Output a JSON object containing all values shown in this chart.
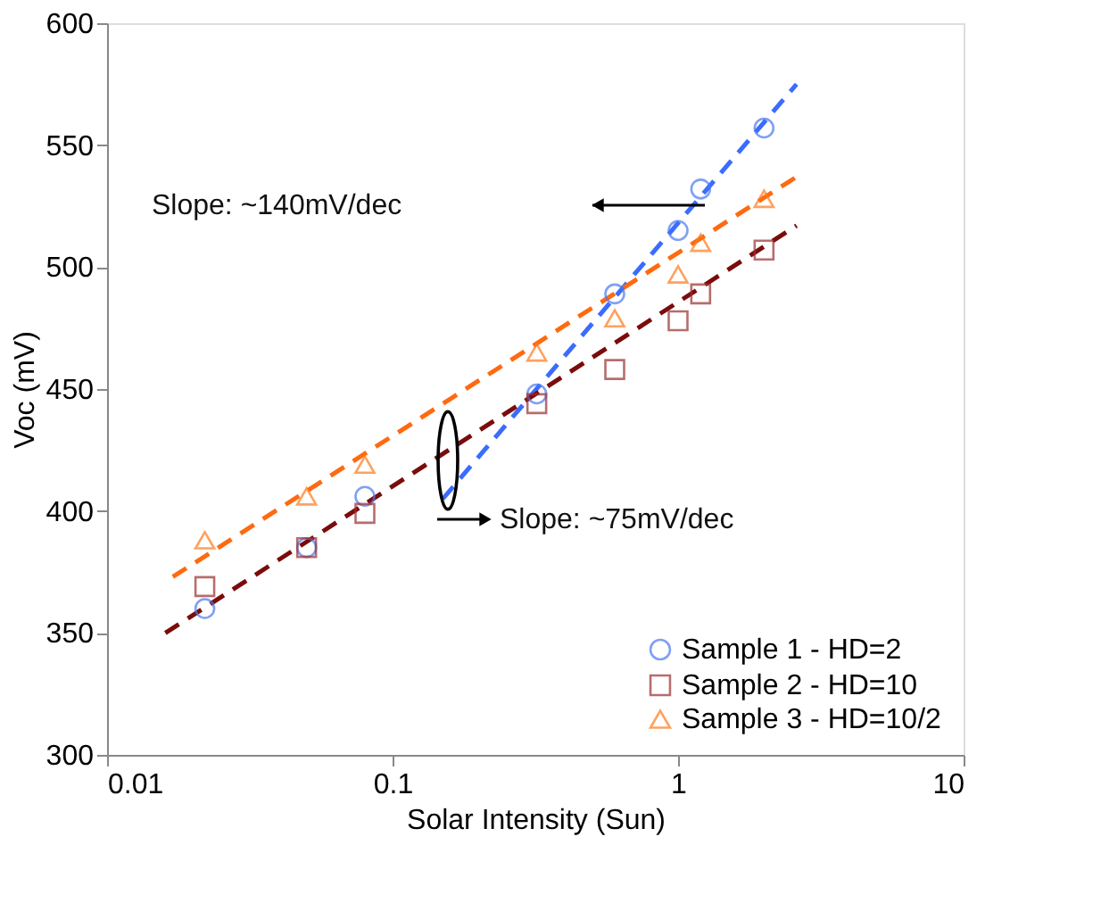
{
  "chart_data": {
    "type": "scatter",
    "xlabel": "Solar Intensity (Sun)",
    "ylabel": "Voc (mV)",
    "log": "x",
    "xlim": [
      0.01,
      10
    ],
    "xticks": [
      0.01,
      0.1,
      1,
      10
    ],
    "ylim": [
      300,
      600
    ],
    "yticks": [
      300,
      350,
      400,
      450,
      500,
      550,
      600
    ],
    "grid": false,
    "legend": "bottom right",
    "series": [
      {
        "name": "Sample 1 - HD=2",
        "color": "#4a78f0",
        "marker": "circle",
        "x": [
          0.022,
          0.05,
          0.08,
          0.32,
          0.6,
          1.0,
          1.2,
          2.0
        ],
        "values": [
          360,
          385,
          406,
          448,
          489,
          515,
          532,
          557
        ]
      },
      {
        "name": "Sample 2 - HD=10",
        "color": "#9a3030",
        "marker": "square",
        "x": [
          0.022,
          0.05,
          0.08,
          0.32,
          0.6,
          1.0,
          1.2,
          2.0
        ],
        "values": [
          369,
          385,
          399,
          444,
          458,
          478,
          489,
          507
        ]
      },
      {
        "name": "Sample 3 - HD=10/2",
        "color": "#ff7a1a",
        "marker": "triangle",
        "x": [
          0.022,
          0.05,
          0.08,
          0.32,
          0.6,
          1.0,
          1.2,
          2.0
        ],
        "values": [
          388,
          406,
          419,
          465,
          479,
          497,
          510,
          528
        ]
      },
      {
        "type": "line",
        "color": "#3b6cff",
        "line_style": "dashed",
        "x": [
          0.15,
          2.6
        ],
        "values": [
          405,
          575
        ]
      },
      {
        "type": "line",
        "color": "#7b0c0c",
        "line_style": "dashed",
        "x": [
          0.016,
          2.6
        ],
        "values": [
          350,
          517
        ]
      },
      {
        "type": "line",
        "color": "#ff6a10",
        "line_style": "dashed",
        "x": [
          0.017,
          2.6
        ],
        "values": [
          373,
          537
        ]
      }
    ],
    "annotations": [
      "Slope: ~140mV/dec",
      "Slope: ~75mV/dec"
    ]
  }
}
